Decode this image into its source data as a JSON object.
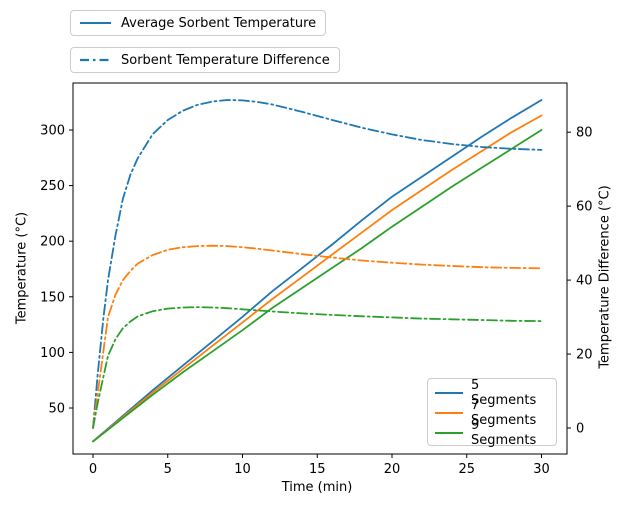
{
  "chart_data": {
    "type": "line",
    "xlabel": "Time (min)",
    "ylabel_left": "Temperature (°C)",
    "ylabel_right": "Temperature Difference (°C)",
    "x_ticks": [
      0,
      5,
      10,
      15,
      20,
      25,
      30
    ],
    "y_left_ticks": [
      50,
      100,
      150,
      200,
      250,
      300
    ],
    "y_right_ticks": [
      0,
      20,
      40,
      60,
      80
    ],
    "xlim": [
      -1.5,
      31.5
    ],
    "ylim_left": [
      8,
      342
    ],
    "ylim_right": [
      -7,
      93
    ],
    "grid": false,
    "series": [
      {
        "name": "5 Segments - Average Sorbent Temperature",
        "axis": "left",
        "style": "solid",
        "color": "#1f77b4",
        "x": [
          0,
          2,
          4,
          6,
          8,
          10,
          12,
          14,
          16,
          18,
          20,
          22,
          24,
          26,
          28,
          30
        ],
        "y": [
          20,
          43,
          66,
          88,
          110,
          132,
          155,
          176,
          197,
          219,
          240,
          258,
          276,
          294,
          311,
          327
        ]
      },
      {
        "name": "7 Segments - Average Sorbent Temperature",
        "axis": "left",
        "style": "solid",
        "color": "#ff7f0e",
        "x": [
          0,
          2,
          4,
          6,
          8,
          10,
          12,
          14,
          16,
          18,
          20,
          22,
          24,
          26,
          28,
          30
        ],
        "y": [
          20,
          42,
          64,
          85,
          106,
          127,
          148,
          168,
          188,
          208,
          228,
          246,
          264,
          281,
          298,
          313
        ]
      },
      {
        "name": "9 Segments - Average Sorbent Temperature",
        "axis": "left",
        "style": "solid",
        "color": "#2ca02c",
        "x": [
          0,
          2,
          4,
          6,
          8,
          10,
          12,
          14,
          16,
          18,
          20,
          22,
          24,
          26,
          28,
          30
        ],
        "y": [
          20,
          41,
          62,
          82,
          101,
          120,
          140,
          158,
          176,
          194,
          213,
          231,
          249,
          266,
          283,
          300
        ]
      },
      {
        "name": "5 Segments - Sorbent Temperature Difference",
        "axis": "right",
        "style": "dashdot",
        "color": "#1f77b4",
        "x": [
          0,
          0.3,
          0.7,
          1,
          1.5,
          2,
          2.5,
          3,
          4,
          5,
          6,
          7,
          8,
          9,
          10,
          11,
          12,
          14,
          16,
          18,
          20,
          22,
          24,
          26,
          28,
          30
        ],
        "y": [
          0,
          14,
          30,
          40,
          52,
          62,
          68.5,
          73,
          79.5,
          83.3,
          85.8,
          87.4,
          88.3,
          88.7,
          88.6,
          88.2,
          87.5,
          85.5,
          83.3,
          81.2,
          79.4,
          77.9,
          76.8,
          76.0,
          75.5,
          75.2
        ]
      },
      {
        "name": "7 Segments - Sorbent Temperature Difference",
        "axis": "right",
        "style": "dashdot",
        "color": "#ff7f0e",
        "x": [
          0,
          0.3,
          0.7,
          1,
          1.5,
          2,
          2.5,
          3,
          4,
          5,
          6,
          7,
          8,
          9,
          10,
          11,
          12,
          14,
          16,
          18,
          20,
          22,
          24,
          26,
          28,
          30
        ],
        "y": [
          0,
          9,
          21,
          30,
          36,
          40,
          42.5,
          44.5,
          46.8,
          48.2,
          48.9,
          49.2,
          49.3,
          49.2,
          48.9,
          48.5,
          48.0,
          47.0,
          46.1,
          45.3,
          44.7,
          44.2,
          43.8,
          43.5,
          43.3,
          43.2
        ]
      },
      {
        "name": "9 Segments - Sorbent Temperature Difference",
        "axis": "right",
        "style": "dashdot",
        "color": "#2ca02c",
        "x": [
          0,
          0.3,
          0.7,
          1,
          1.5,
          2,
          2.5,
          3,
          4,
          5,
          6,
          7,
          8,
          9,
          10,
          11,
          12,
          14,
          16,
          18,
          20,
          22,
          24,
          26,
          28,
          30
        ],
        "y": [
          0,
          6.5,
          14,
          19.5,
          24,
          27,
          28.8,
          30.2,
          31.6,
          32.3,
          32.6,
          32.7,
          32.6,
          32.4,
          32.1,
          31.8,
          31.5,
          31.0,
          30.6,
          30.2,
          29.9,
          29.6,
          29.4,
          29.2,
          29.0,
          28.9
        ]
      }
    ],
    "legend_top_position": "upper left, outside axes",
    "legend_segments_position": "lower right, inside axes"
  },
  "legend_top": {
    "items": [
      {
        "label": "Average Sorbent Temperature",
        "style": "solid",
        "color": "#1f77b4"
      },
      {
        "label": "Sorbent Temperature Difference",
        "style": "dashdot",
        "color": "#1f77b4"
      }
    ]
  },
  "legend_segments": {
    "items": [
      {
        "label": "5 Segments",
        "color": "#1f77b4"
      },
      {
        "label": "7 Segments",
        "color": "#ff7f0e"
      },
      {
        "label": "9 Segments",
        "color": "#2ca02c"
      }
    ]
  },
  "axes": {
    "xlabel": "Time (min)",
    "ylabel_left": "Temperature (°C)",
    "ylabel_right": "Temperature Difference (°C)"
  },
  "colors": {
    "blue": "#1f77b4",
    "orange": "#ff7f0e",
    "green": "#2ca02c",
    "spine": "#000000",
    "legend_border": "#cccccc",
    "background": "#ffffff"
  }
}
